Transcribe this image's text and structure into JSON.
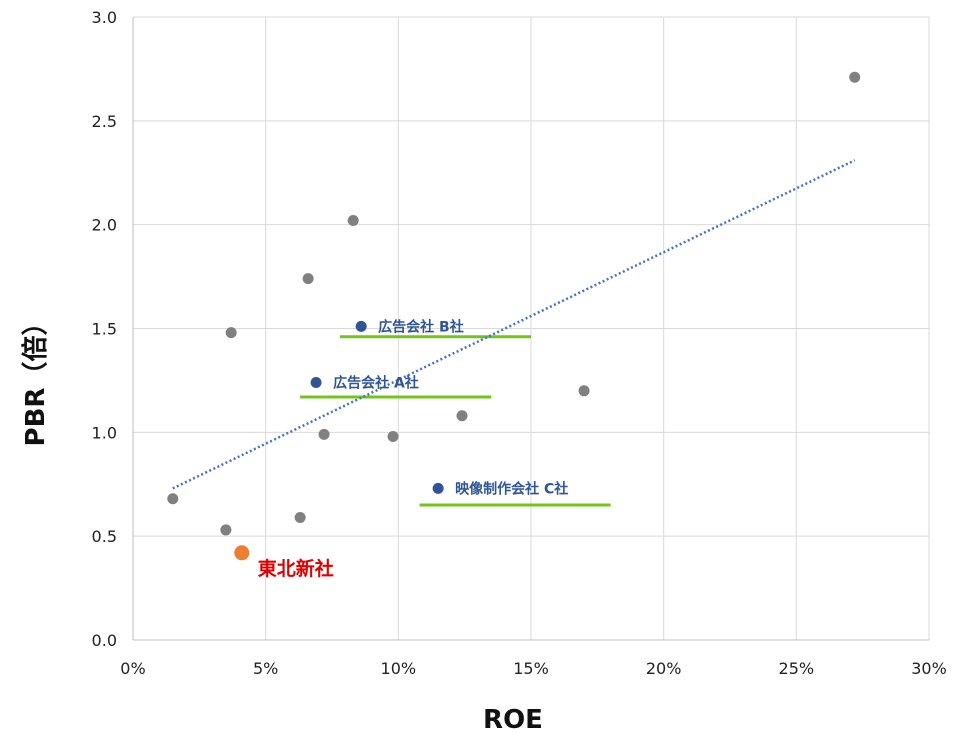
{
  "chart_data": {
    "type": "scatter",
    "xlabel": "ROE",
    "ylabel": "PBR（倍）",
    "xlim": [
      0,
      30
    ],
    "ylim": [
      0,
      3.0
    ],
    "x_unit": "%",
    "xticks": [
      "0%",
      "5%",
      "10%",
      "15%",
      "20%",
      "25%",
      "30%"
    ],
    "yticks": [
      "0.0",
      "0.5",
      "1.0",
      "1.5",
      "2.0",
      "2.5",
      "3.0"
    ],
    "grid": true,
    "colors": {
      "peer": "#808080",
      "labeled": "#2F5597",
      "highlight": "#ED7D31",
      "highlight_text": "#E00000",
      "trendline": "#4472C4",
      "range_bar": "#70C41A",
      "grid": "#D9D9D9"
    },
    "series": [
      {
        "points": [
          {
            "x": 1.5,
            "y": 0.68
          },
          {
            "x": 3.5,
            "y": 0.53
          },
          {
            "x": 3.7,
            "y": 1.48
          },
          {
            "x": 6.3,
            "y": 0.59
          },
          {
            "x": 6.6,
            "y": 1.74
          },
          {
            "x": 7.2,
            "y": 0.99
          },
          {
            "x": 8.3,
            "y": 2.02
          },
          {
            "x": 9.8,
            "y": 0.98
          },
          {
            "x": 12.4,
            "y": 1.08
          },
          {
            "x": 17.0,
            "y": 1.2
          },
          {
            "x": 27.2,
            "y": 2.71
          }
        ]
      }
    ],
    "labeled_points": [
      {
        "label": "広告会社 B社",
        "x": 8.6,
        "y": 1.51
      },
      {
        "label": "広告会社 A社",
        "x": 6.9,
        "y": 1.24
      },
      {
        "label": "映像制作会社 C社",
        "x": 11.5,
        "y": 0.73
      }
    ],
    "highlight_point": {
      "label": "東北新社",
      "x": 4.1,
      "y": 0.42
    },
    "range_bars": [
      {
        "x_start": 7.8,
        "x_end": 15.0,
        "y": 1.46
      },
      {
        "x_start": 6.3,
        "x_end": 13.5,
        "y": 1.17
      },
      {
        "x_start": 10.8,
        "x_end": 18.0,
        "y": 0.65
      }
    ],
    "trendline": {
      "type": "linear",
      "x_start": 1.5,
      "y_start": 0.73,
      "x_end": 27.2,
      "y_end": 2.31
    }
  }
}
